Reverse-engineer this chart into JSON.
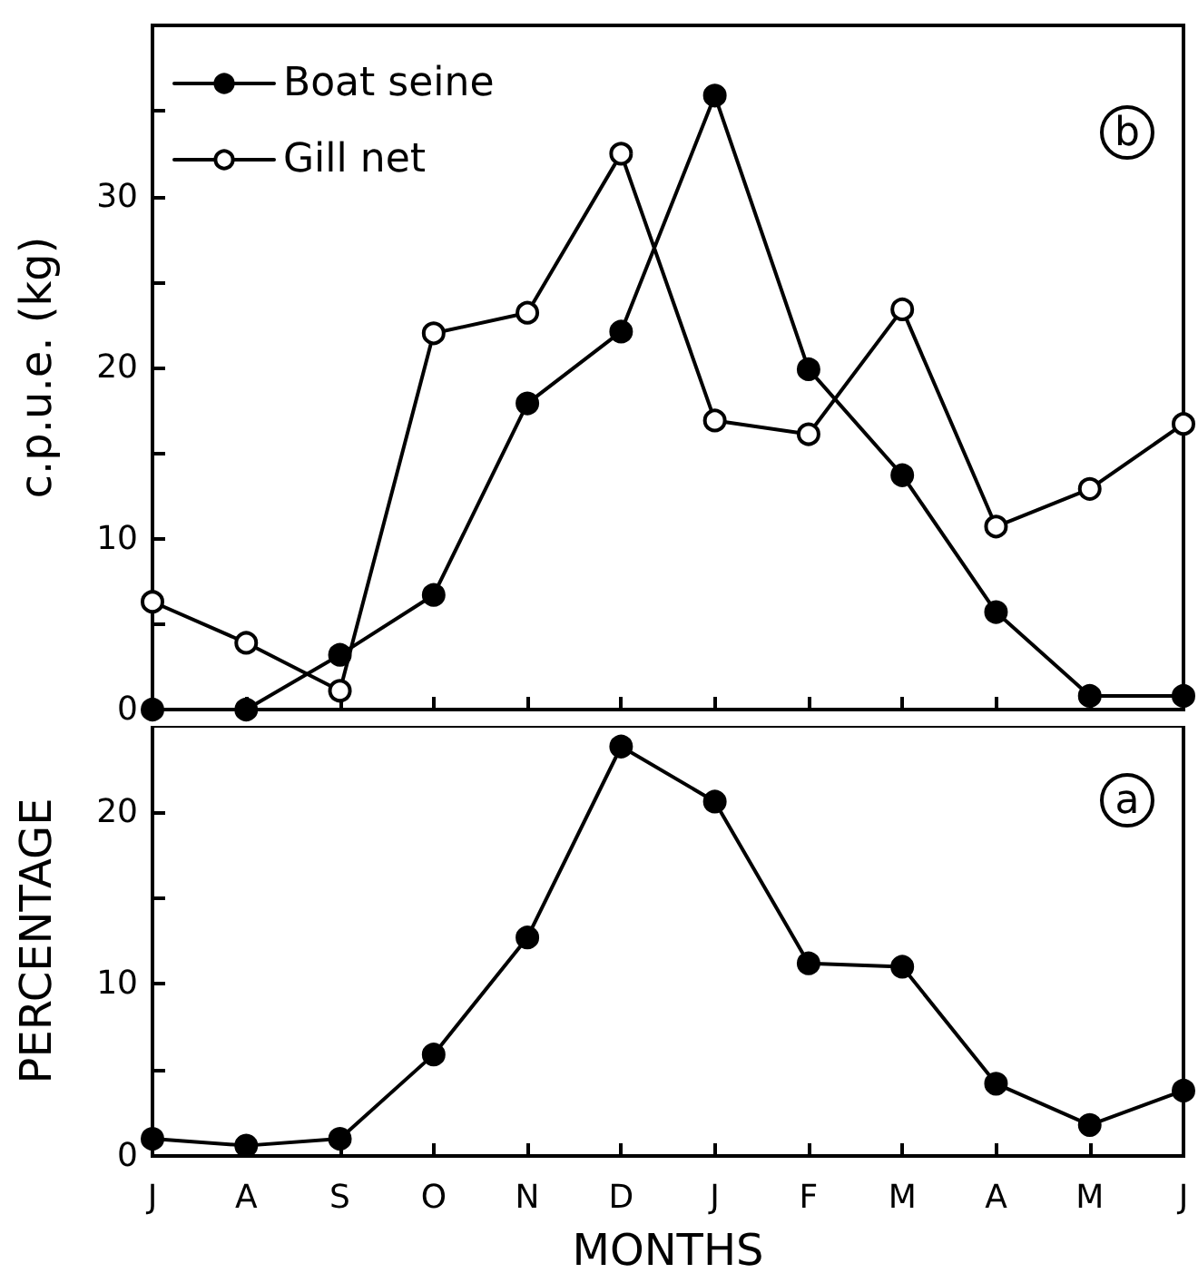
{
  "chart_data": [
    {
      "type": "line",
      "ylabel": "c.p.u.e. (kg)",
      "annotations": [
        "b"
      ],
      "categories": [
        null,
        null,
        null,
        null,
        null,
        null,
        null,
        null,
        null,
        null,
        null,
        null
      ],
      "series": [
        {
          "name": "Boat seine",
          "color": "#000000",
          "values": [
            0,
            0,
            3.2,
            6.7,
            17.9,
            22.1,
            35.9,
            19.9,
            13.7,
            5.7,
            0.8,
            0.8
          ]
        },
        {
          "name": "Gill net",
          "color": "#000000",
          "values": [
            6.3,
            3.9,
            1.1,
            22.0,
            23.2,
            32.5,
            16.9,
            16.1,
            23.4,
            10.7,
            12.9,
            16.7
          ]
        }
      ],
      "ylim": [
        0,
        40
      ],
      "yticks": [
        0,
        {
          "value": 5,
          "label": null
        },
        10,
        {
          "value": 15,
          "label": null
        },
        20,
        {
          "value": 25,
          "label": null
        },
        30,
        {
          "value": 35,
          "label": null
        }
      ],
      "grid": false,
      "legend": "top left",
      "marker": "circle",
      "line_style": "solid",
      "tick_labels": "y"
    },
    {
      "type": "line",
      "ylabel": "PERCENTAGE",
      "xlabel": "MONTHS",
      "annotations": [
        "a"
      ],
      "categories": [
        "J",
        "A",
        "S",
        "O",
        "N",
        "D",
        "J",
        "F",
        "M",
        "A",
        "M",
        "J"
      ],
      "series": [
        {
          "color": "#000000",
          "values": [
            1.0,
            0.6,
            1.0,
            5.9,
            12.7,
            23.8,
            20.6,
            11.2,
            11.0,
            4.2,
            1.8,
            3.8
          ]
        }
      ],
      "ylim": [
        0,
        25
      ],
      "yticks": [
        0,
        {
          "value": 5,
          "label": null
        },
        10,
        {
          "value": 15,
          "label": null
        },
        20
      ],
      "grid": false,
      "legend": false,
      "marker": "circle",
      "line_style": "solid"
    }
  ]
}
